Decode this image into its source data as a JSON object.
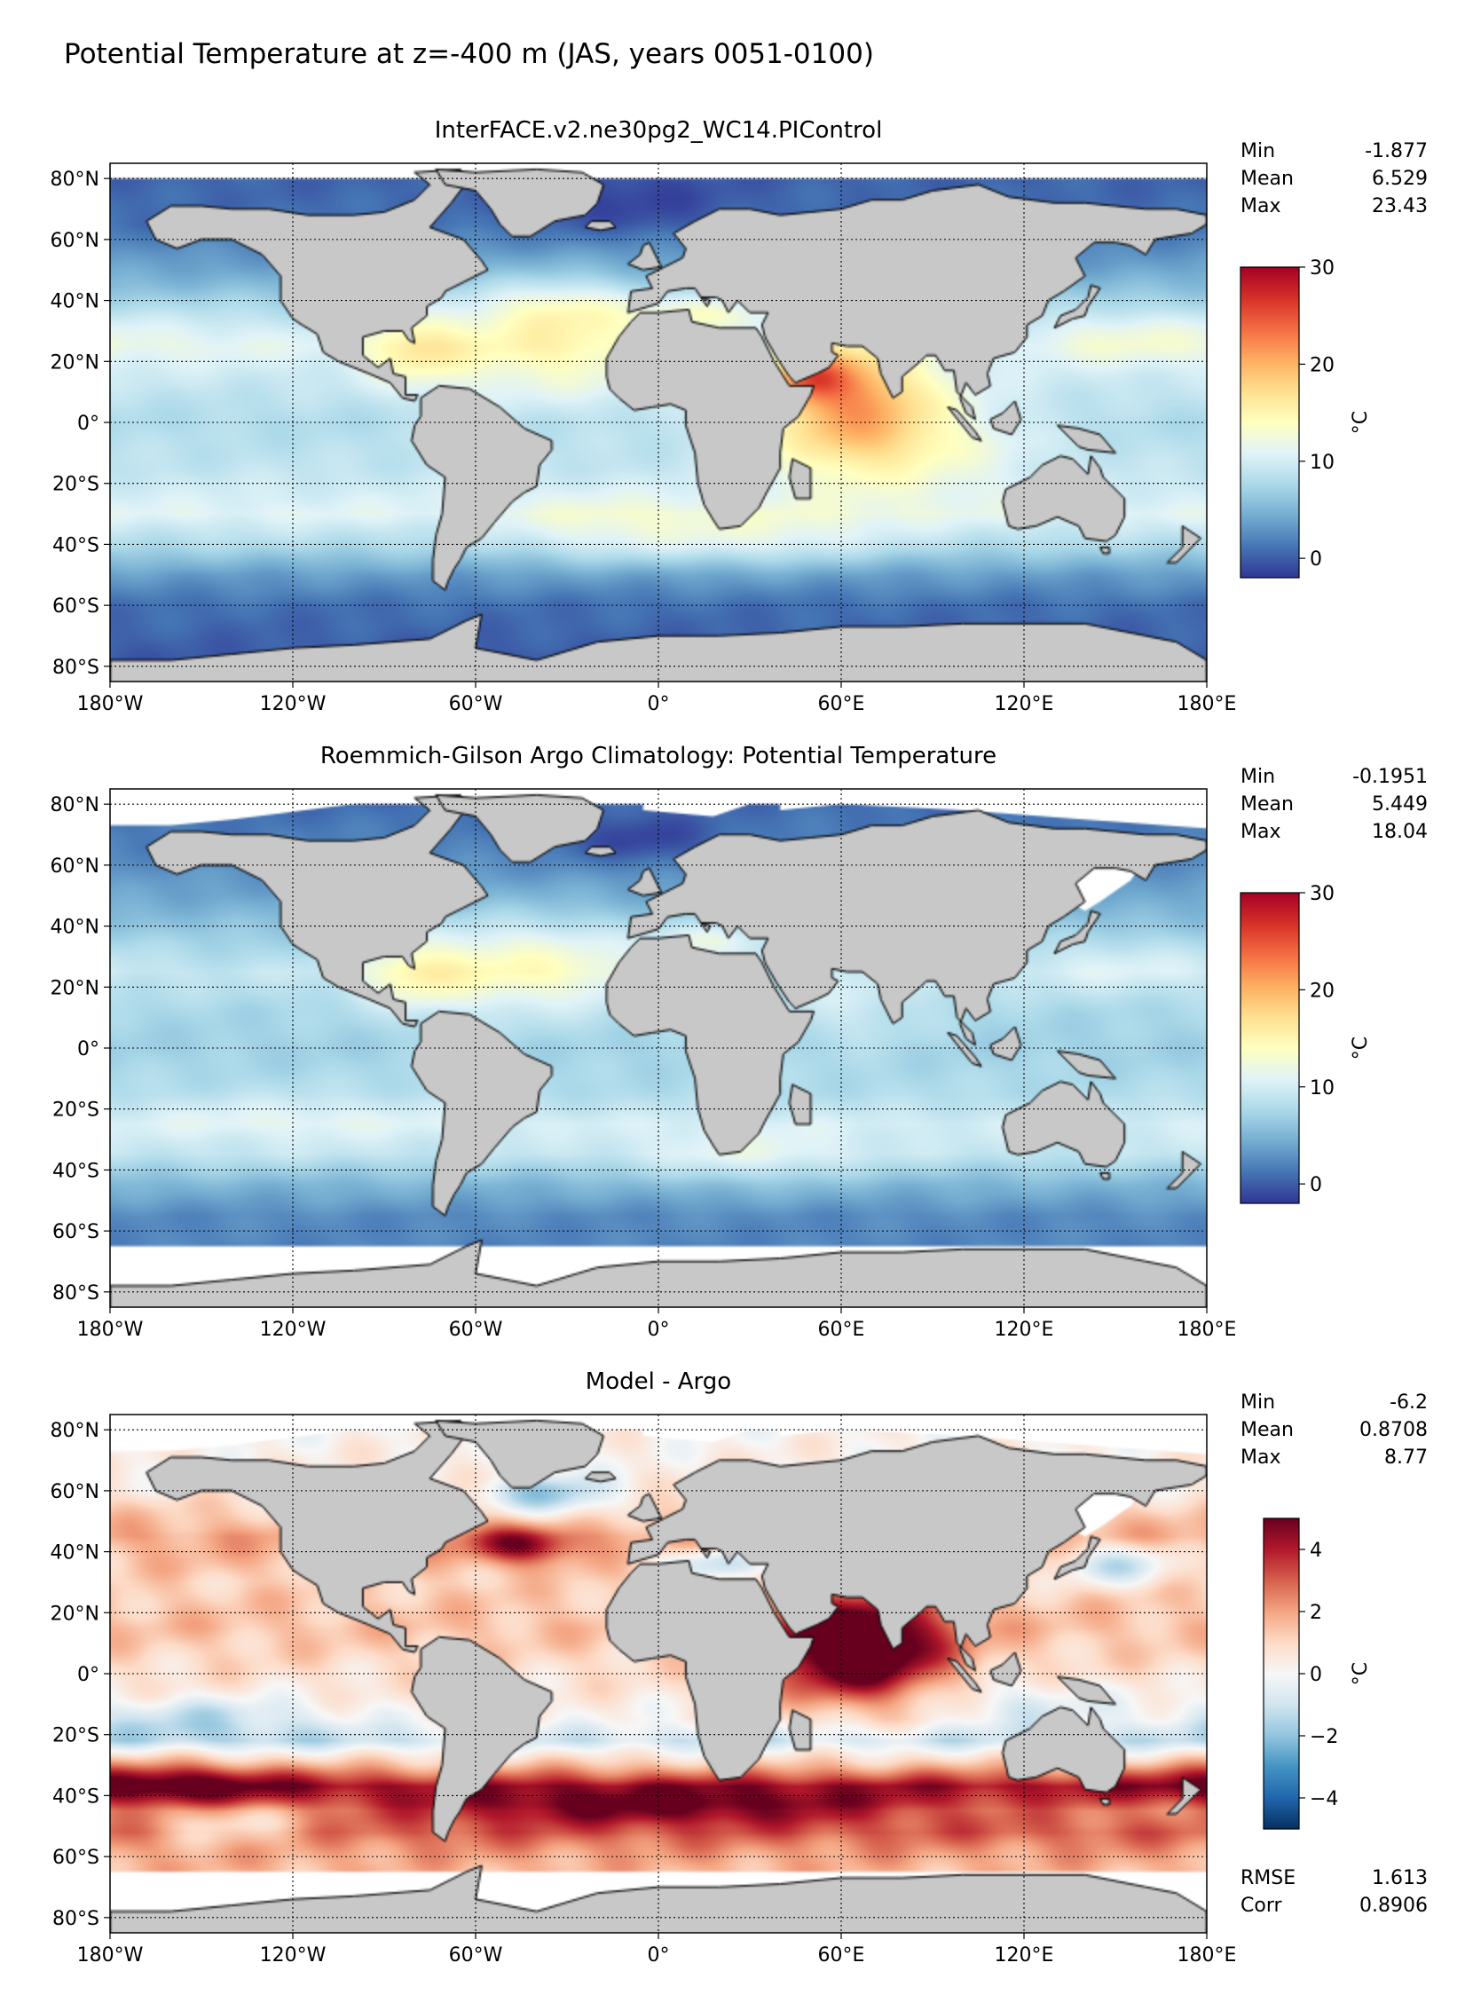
{
  "figure_title": "Potential Temperature at z=-400 m (JAS, years 0051-0100)",
  "colors": {
    "land": "#c8c8c8",
    "no_data": "#ffffff",
    "frame": "#000000",
    "rdylbu": [
      "#313695",
      "#4575b4",
      "#74add1",
      "#abd9e9",
      "#e0f3f8",
      "#ffffbf",
      "#fee090",
      "#fdae61",
      "#f46d43",
      "#d73027",
      "#a50026"
    ],
    "rdbu": [
      "#053061",
      "#2166ac",
      "#4393c3",
      "#92c5de",
      "#d1e5f0",
      "#f7f7f7",
      "#fddbc7",
      "#f4a582",
      "#d6604d",
      "#b2182b",
      "#67001f"
    ]
  },
  "chart_data": [
    {
      "type": "heatmap",
      "title": "InterFACE.v2.ne30pg2_WC14.PIControl",
      "x_ticks": [
        "180°W",
        "120°W",
        "60°W",
        "0°",
        "60°E",
        "120°E",
        "180°E"
      ],
      "x_tick_values": [
        -180,
        -120,
        -60,
        0,
        60,
        120,
        180
      ],
      "y_ticks": [
        "80°N",
        "60°N",
        "40°N",
        "20°N",
        "0°",
        "20°S",
        "40°S",
        "60°S",
        "80°S"
      ],
      "y_tick_values": [
        80,
        60,
        40,
        20,
        0,
        -20,
        -40,
        -60,
        -80
      ],
      "xlim": [
        -180,
        180
      ],
      "ylim": [
        -85,
        85
      ],
      "grid": true,
      "stats": [
        {
          "label": "Min",
          "value": "-1.877"
        },
        {
          "label": "Mean",
          "value": "6.529"
        },
        {
          "label": "Max",
          "value": "23.43"
        }
      ],
      "colorbar": {
        "cmap": "rdylbu",
        "vmin": -2,
        "vmax": 30,
        "ticks": [
          "30",
          "20",
          "10",
          "0"
        ],
        "tick_values": [
          30,
          20,
          10,
          0
        ],
        "label": "°C"
      },
      "argo_mask": false,
      "field": {
        "base": [
          [
            90,
            0
          ],
          [
            65,
            1.0
          ],
          [
            50,
            4.0
          ],
          [
            40,
            6.5
          ],
          [
            25,
            9.5
          ],
          [
            12,
            9.0
          ],
          [
            0,
            8.0
          ],
          [
            -15,
            9.0
          ],
          [
            -30,
            11.0
          ],
          [
            -40,
            8.0
          ],
          [
            -50,
            3.5
          ],
          [
            -60,
            1.0
          ],
          [
            -90,
            -1.0
          ]
        ],
        "blobs": [
          {
            "lon": -35,
            "lat": 28,
            "rl": 30,
            "rt": 14,
            "amp": 5.5
          },
          {
            "lon": -80,
            "lat": 24,
            "rl": 12,
            "rt": 8,
            "amp": 5.0
          },
          {
            "lon": -30,
            "lat": 38,
            "rl": 18,
            "rt": 6,
            "amp": 3.0
          },
          {
            "lon": 18,
            "lat": 36,
            "rl": 14,
            "rt": 4,
            "amp": 5.0
          },
          {
            "lon": 62,
            "lat": 10,
            "rl": 18,
            "rt": 14,
            "amp": 10.0
          },
          {
            "lon": 50,
            "lat": 15,
            "rl": 8,
            "rt": 5,
            "amp": 8.0
          },
          {
            "lon": 75,
            "lat": -5,
            "rl": 30,
            "rt": 12,
            "amp": 6.0
          },
          {
            "lon": -150,
            "lat": 28,
            "rl": 40,
            "rt": 8,
            "amp": 2.0
          },
          {
            "lon": 150,
            "lat": 28,
            "rl": 25,
            "rt": 7,
            "amp": 3.0
          },
          {
            "lon": 30,
            "lat": -38,
            "rl": 30,
            "rt": 7,
            "amp": 3.0
          },
          {
            "lon": -20,
            "lat": -35,
            "rl": 20,
            "rt": 8,
            "amp": 2.0
          },
          {
            "lon": -10,
            "lat": 72,
            "rl": 25,
            "rt": 8,
            "amp": -2.0
          }
        ]
      }
    },
    {
      "type": "heatmap",
      "title": "Roemmich-Gilson Argo Climatology: Potential Temperature",
      "x_ticks": [
        "180°W",
        "120°W",
        "60°W",
        "0°",
        "60°E",
        "120°E",
        "180°E"
      ],
      "x_tick_values": [
        -180,
        -120,
        -60,
        0,
        60,
        120,
        180
      ],
      "y_ticks": [
        "80°N",
        "60°N",
        "40°N",
        "20°N",
        "0°",
        "20°S",
        "40°S",
        "60°S",
        "80°S"
      ],
      "y_tick_values": [
        80,
        60,
        40,
        20,
        0,
        -20,
        -40,
        -60,
        -80
      ],
      "xlim": [
        -180,
        180
      ],
      "ylim": [
        -85,
        85
      ],
      "grid": true,
      "stats": [
        {
          "label": "Min",
          "value": "-0.1951"
        },
        {
          "label": "Mean",
          "value": "5.449"
        },
        {
          "label": "Max",
          "value": "18.04"
        }
      ],
      "colorbar": {
        "cmap": "rdylbu",
        "vmin": -2,
        "vmax": 30,
        "ticks": [
          "30",
          "20",
          "10",
          "0"
        ],
        "tick_values": [
          30,
          20,
          10,
          0
        ],
        "label": "°C"
      },
      "argo_mask": true,
      "field": {
        "base": [
          [
            90,
            0
          ],
          [
            65,
            2.0
          ],
          [
            50,
            4.0
          ],
          [
            40,
            6.0
          ],
          [
            25,
            9.0
          ],
          [
            12,
            7.5
          ],
          [
            0,
            7.0
          ],
          [
            -15,
            8.0
          ],
          [
            -25,
            10.0
          ],
          [
            -35,
            9.0
          ],
          [
            -45,
            5.0
          ],
          [
            -55,
            2.5
          ],
          [
            -90,
            1.0
          ]
        ],
        "blobs": [
          {
            "lon": -45,
            "lat": 28,
            "rl": 30,
            "rt": 12,
            "amp": 5.5
          },
          {
            "lon": -80,
            "lat": 24,
            "rl": 12,
            "rt": 8,
            "amp": 4.0
          },
          {
            "lon": 18,
            "lat": 36,
            "rl": 14,
            "rt": 4,
            "amp": 4.5
          },
          {
            "lon": 62,
            "lat": 12,
            "rl": 20,
            "rt": 10,
            "amp": 2.0
          },
          {
            "lon": 150,
            "lat": 28,
            "rl": 25,
            "rt": 7,
            "amp": 2.0
          },
          {
            "lon": 30,
            "lat": -36,
            "rl": 25,
            "rt": 7,
            "amp": 2.5
          },
          {
            "lon": -5,
            "lat": 68,
            "rl": 18,
            "rt": 6,
            "amp": -3.0
          },
          {
            "lon": -120,
            "lat": -22,
            "rl": 40,
            "rt": 6,
            "amp": 1.5
          }
        ]
      }
    },
    {
      "type": "heatmap",
      "title": "Model - Argo",
      "x_ticks": [
        "180°W",
        "120°W",
        "60°W",
        "0°",
        "60°E",
        "120°E",
        "180°E"
      ],
      "x_tick_values": [
        -180,
        -120,
        -60,
        0,
        60,
        120,
        180
      ],
      "y_ticks": [
        "80°N",
        "60°N",
        "40°N",
        "20°N",
        "0°",
        "20°S",
        "40°S",
        "60°S",
        "80°S"
      ],
      "y_tick_values": [
        80,
        60,
        40,
        20,
        0,
        -20,
        -40,
        -60,
        -80
      ],
      "xlim": [
        -180,
        180
      ],
      "ylim": [
        -85,
        85
      ],
      "grid": true,
      "stats": [
        {
          "label": "Min",
          "value": "-6.2"
        },
        {
          "label": "Mean",
          "value": "0.8708"
        },
        {
          "label": "Max",
          "value": "8.77"
        }
      ],
      "extra_stats": [
        {
          "label": "RMSE",
          "value": "1.613"
        },
        {
          "label": "Corr",
          "value": "0.8906"
        }
      ],
      "colorbar": {
        "cmap": "rdbu",
        "vmin": -5,
        "vmax": 5,
        "ticks": [
          "4",
          "2",
          "0",
          "−2",
          "−4"
        ],
        "tick_values": [
          4,
          2,
          0,
          -2,
          -4
        ],
        "label": "°C"
      },
      "argo_mask": true,
      "field": {
        "base": [
          [
            90,
            0
          ],
          [
            60,
            0.5
          ],
          [
            45,
            2.0
          ],
          [
            30,
            1.2
          ],
          [
            15,
            1.5
          ],
          [
            0,
            0.8
          ],
          [
            -15,
            0.2
          ],
          [
            -22,
            -1.0
          ],
          [
            -30,
            1.5
          ],
          [
            -37,
            4.2
          ],
          [
            -45,
            2.5
          ],
          [
            -52,
            3.0
          ],
          [
            -60,
            2.0
          ],
          [
            -90,
            0
          ]
        ],
        "blobs": [
          {
            "lon": 65,
            "lat": 8,
            "rl": 20,
            "rt": 12,
            "amp": 6.0
          },
          {
            "lon": -45,
            "lat": 42,
            "rl": 12,
            "rt": 4,
            "amp": 3.0
          },
          {
            "lon": -35,
            "lat": 58,
            "rl": 14,
            "rt": 5,
            "amp": -2.5
          },
          {
            "lon": 18,
            "lat": 36,
            "rl": 15,
            "rt": 4,
            "amp": -2.5
          },
          {
            "lon": 150,
            "lat": 36,
            "rl": 15,
            "rt": 5,
            "amp": -2.5
          },
          {
            "lon": -150,
            "lat": -15,
            "rl": 30,
            "rt": 5,
            "amp": -1.5
          },
          {
            "lon": 0,
            "lat": -44,
            "rl": 60,
            "rt": 4,
            "amp": 2.5
          },
          {
            "lon": -160,
            "lat": -36,
            "rl": 25,
            "rt": 5,
            "amp": 2.0
          },
          {
            "lon": -140,
            "lat": -50,
            "rl": 20,
            "rt": 5,
            "amp": -2.0
          },
          {
            "lon": 120,
            "lat": -10,
            "rl": 20,
            "rt": 6,
            "amp": -1.0
          }
        ]
      }
    }
  ]
}
